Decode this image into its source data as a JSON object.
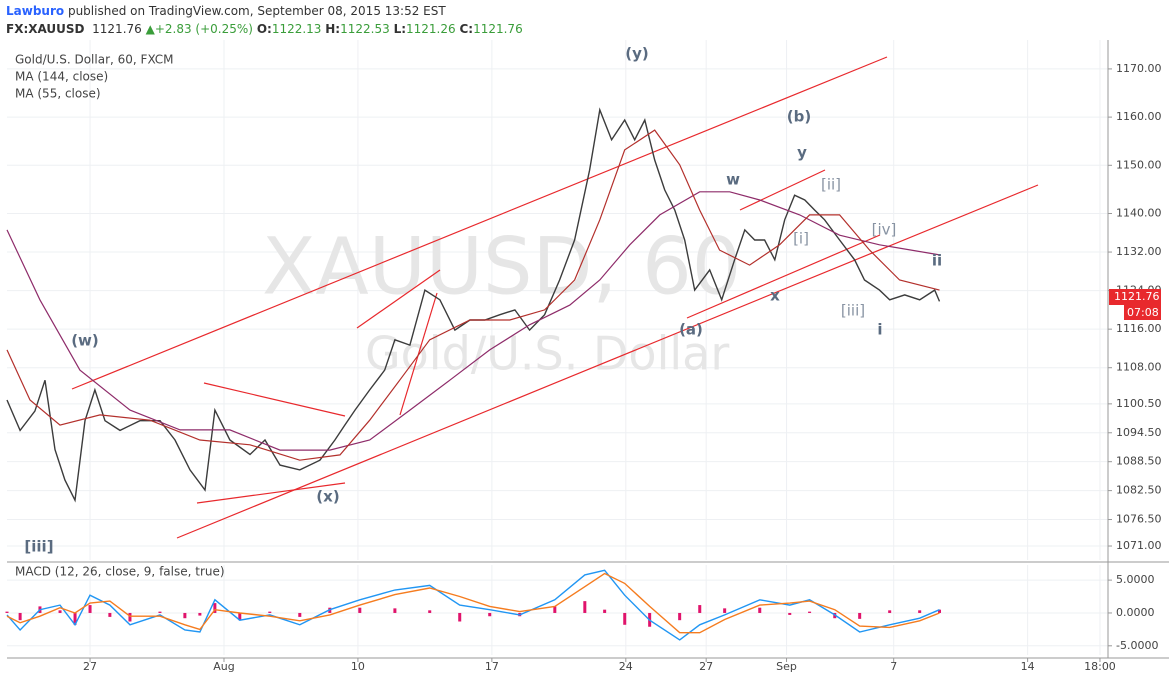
{
  "header": {
    "publisher": "Lawburo",
    "published_text": "published on TradingView.com, September 08, 2015 13:52 EST",
    "symbol": "FX:XAUUSD",
    "last": "1121.76",
    "change": "+2.83 (+0.25%)",
    "open_label": "O:",
    "open": "1122.13",
    "high_label": "H:",
    "high": "1122.53",
    "low_label": "L:",
    "low": "1121.26",
    "close_label": "C:",
    "close": "1121.76"
  },
  "chart_data": [
    {
      "type": "line",
      "title": "Gold/U.S. Dollar, 60, FXCM",
      "watermark": {
        "symbol": "XAUUSD, 60",
        "name": "Gold/U.S. Dollar"
      },
      "last_price": "1121.76",
      "countdown": "07:08",
      "annotations": [
        "(y)",
        "(b)",
        "y",
        "w",
        "[ii]",
        "[iv]",
        "[i]",
        "ii",
        "x",
        "(a)",
        "[iii]",
        "i",
        "(w)",
        "(x)",
        "[iii]"
      ],
      "xlim": [
        0,
        41.1
      ],
      "ylim": [
        1068.1,
        1176.0
      ],
      "yticks": [
        {
          "value": 1071,
          "label": "1071.00"
        },
        {
          "value": 1076.5,
          "label": "1076.50"
        },
        {
          "value": 1082.5,
          "label": "1082.50"
        },
        {
          "value": 1088.5,
          "label": "1088.50"
        },
        {
          "value": 1094.5,
          "label": "1094.50"
        },
        {
          "value": 1100.5,
          "label": "1100.50"
        },
        {
          "value": 1108,
          "label": "1108.00"
        },
        {
          "value": 1116,
          "label": "1116.00"
        },
        {
          "value": 1124,
          "label": "1124.00"
        },
        {
          "value": 1132,
          "label": "1132.00"
        },
        {
          "value": 1140,
          "label": "1140.00"
        },
        {
          "value": 1150,
          "label": "1150.00"
        },
        {
          "value": 1160,
          "label": "1160.00"
        },
        {
          "value": 1170,
          "label": "1170.00"
        }
      ],
      "grid": true,
      "series": [
        {
          "color": "#3c3c3c",
          "x": [
            0,
            0.49,
            1.04,
            1.42,
            1.79,
            2.16,
            2.54,
            2.91,
            3.28,
            3.66,
            4.22,
            4.96,
            5.71,
            6.27,
            6.83,
            7.39,
            7.76,
            8.32,
            9.07,
            9.63,
            10.19,
            10.93,
            11.68,
            12.24,
            12.61,
            12.99,
            13.54,
            14.1,
            14.48,
            15.04,
            15.6,
            16.16,
            16.72,
            17.28,
            17.84,
            18.4,
            18.96,
            19.51,
            20.07,
            20.63,
            21.19,
            21.75,
            22.13,
            22.57,
            23.06,
            23.43,
            23.81,
            24.18,
            24.55,
            24.93,
            25.3,
            25.67,
            26.23,
            26.68,
            27.16,
            27.54,
            27.91,
            28.28,
            28.66,
            29.03,
            29.4,
            29.78,
            30.15,
            30.52,
            31.08,
            31.64,
            32.01,
            32.57,
            32.95,
            33.51,
            34.07,
            34.63,
            34.81
          ],
          "values": [
            1101.3,
            1095,
            1099,
            1105.4,
            1091,
            1084.7,
            1080.5,
            1097,
            1103.4,
            1097,
            1095,
            1097,
            1097,
            1093,
            1086.8,
            1082.6,
            1099.2,
            1093,
            1090,
            1093,
            1087.8,
            1086.8,
            1088.8,
            1093,
            1096.1,
            1099.2,
            1103.4,
            1107.5,
            1113.8,
            1112.7,
            1124.1,
            1122.1,
            1115.8,
            1117.9,
            1117.9,
            1119,
            1120,
            1115.8,
            1119,
            1126.2,
            1134.5,
            1149,
            1161.5,
            1155.3,
            1159.4,
            1155.3,
            1159.4,
            1151.1,
            1144.9,
            1140.7,
            1134.5,
            1124.1,
            1128.3,
            1122.1,
            1130.4,
            1136.6,
            1134.5,
            1134.5,
            1130.4,
            1138.7,
            1143.8,
            1142.8,
            1140.7,
            1138.7,
            1134.5,
            1130.4,
            1126.2,
            1124.1,
            1122.1,
            1123.1,
            1122.1,
            1124.1,
            1121.76
          ]
        },
        {
          "name": "MA (144, close)",
          "color": "#8e2c6a",
          "x": [
            0,
            1.23,
            2.72,
            4.59,
            6.46,
            8.32,
            10.19,
            12.05,
            13.54,
            15.04,
            16.53,
            18.02,
            19.51,
            21.01,
            22.13,
            23.25,
            24.37,
            25.86,
            26.98,
            28.1,
            29.59,
            31.08,
            32.57,
            34.81
          ],
          "values": [
            1136.6,
            1122.1,
            1107.5,
            1099.2,
            1095.1,
            1095.1,
            1090.9,
            1090.9,
            1093.0,
            1099.2,
            1105.4,
            1111.7,
            1116.9,
            1121.0,
            1126.2,
            1133.5,
            1139.7,
            1144.5,
            1144.5,
            1142.8,
            1139.7,
            1135.5,
            1133.5,
            1131.4
          ]
        },
        {
          "name": "MA (55, close)",
          "color": "#b3302c",
          "x": [
            0,
            0.86,
            1.98,
            3.47,
            5.34,
            7.2,
            9.07,
            10.93,
            12.43,
            13.54,
            14.66,
            15.78,
            17.28,
            18.77,
            20.07,
            21.19,
            22.13,
            23.06,
            24.18,
            25.11,
            25.86,
            26.6,
            27.72,
            28.84,
            29.96,
            31.08,
            32.2,
            33.32,
            34.81
          ],
          "values": [
            1111.7,
            1101.3,
            1096.1,
            1098.2,
            1097.1,
            1093.0,
            1092.0,
            1088.8,
            1089.9,
            1097.1,
            1105.4,
            1113.8,
            1117.9,
            1117.9,
            1120.0,
            1126.2,
            1138.7,
            1153.2,
            1157.3,
            1150.1,
            1140.7,
            1132.4,
            1129.3,
            1133.5,
            1139.7,
            1139.7,
            1132.4,
            1126.2,
            1124.1
          ]
        }
      ]
    },
    {
      "type": "line",
      "title": "MACD (12, 26, close, 9, false, true)",
      "xlim": [
        0,
        41.1
      ],
      "ylim": [
        -6.4,
        7.3
      ],
      "xticks": [
        {
          "value": 3.1,
          "label": "27"
        },
        {
          "value": 8.1,
          "label": "Aug"
        },
        {
          "value": 13.1,
          "label": "10"
        },
        {
          "value": 18.1,
          "label": "17"
        },
        {
          "value": 23.1,
          "label": "24"
        },
        {
          "value": 26.1,
          "label": "27"
        },
        {
          "value": 29.1,
          "label": "Sep"
        },
        {
          "value": 33.1,
          "label": "7"
        },
        {
          "value": 38.1,
          "label": "14"
        },
        {
          "value": 40.8,
          "label": "18:00"
        }
      ],
      "yticks": [
        {
          "value": -5,
          "label": "-5.0000"
        },
        {
          "value": 0,
          "label": "0.0000"
        },
        {
          "value": 5,
          "label": "5.0000"
        }
      ],
      "grid": true,
      "series": [
        {
          "type": "bar",
          "color": "#e0136b",
          "x": [
            0,
            0.49,
            1.23,
            1.98,
            2.54,
            3.1,
            3.84,
            4.59,
            5.71,
            6.64,
            7.2,
            7.76,
            8.69,
            9.81,
            10.93,
            12.05,
            13.17,
            14.48,
            15.78,
            16.9,
            18.02,
            19.14,
            20.45,
            21.57,
            22.31,
            23.06,
            23.99,
            25.11,
            25.86,
            26.79,
            28.1,
            29.22,
            29.96,
            30.9,
            31.83,
            32.95,
            34.07,
            34.81
          ],
          "values": [
            0.2,
            -1.1,
            1.0,
            0.4,
            -1.8,
            1.2,
            -0.6,
            -1.3,
            0.2,
            -0.8,
            -0.4,
            1.5,
            -1.1,
            0.2,
            -0.6,
            0.8,
            0.8,
            0.7,
            0.4,
            -1.3,
            -0.5,
            -0.5,
            1.0,
            1.8,
            0.5,
            -1.8,
            -2.1,
            -1.1,
            1.2,
            0.7,
            0.8,
            -0.3,
            0.2,
            -0.8,
            -0.9,
            0.4,
            0.4,
            0.5
          ]
        },
        {
          "type": "line",
          "color": "#2196f3",
          "x": [
            0,
            0.49,
            1.23,
            1.98,
            2.54,
            3.1,
            3.84,
            4.59,
            5.71,
            6.64,
            7.2,
            7.76,
            8.69,
            9.81,
            10.93,
            12.05,
            13.17,
            14.48,
            15.78,
            16.9,
            18.02,
            19.14,
            20.45,
            21.57,
            22.31,
            23.06,
            23.99,
            25.11,
            25.86,
            26.79,
            28.1,
            29.22,
            29.96,
            30.9,
            31.83,
            32.95,
            34.07,
            34.81
          ],
          "values": [
            -0.3,
            -2.6,
            0.5,
            1.2,
            -1.8,
            2.7,
            1.2,
            -1.8,
            -0.3,
            -2.6,
            -2.9,
            2.0,
            -1.1,
            -0.3,
            -1.8,
            0.5,
            2.0,
            3.5,
            4.2,
            1.2,
            0.5,
            -0.3,
            2.0,
            5.8,
            6.5,
            2.7,
            -1.1,
            -4.1,
            -1.8,
            -0.3,
            2.0,
            1.2,
            2.0,
            -0.3,
            -2.9,
            -1.8,
            -0.8,
            0.5
          ]
        },
        {
          "type": "line",
          "color": "#f57c1f",
          "x": [
            0,
            0.49,
            1.23,
            1.98,
            2.54,
            3.1,
            3.84,
            4.59,
            5.71,
            6.64,
            7.2,
            7.76,
            8.69,
            9.81,
            10.93,
            12.05,
            13.17,
            14.48,
            15.78,
            16.9,
            18.02,
            19.14,
            20.45,
            21.57,
            22.31,
            23.06,
            23.99,
            25.11,
            25.86,
            26.79,
            28.1,
            29.22,
            29.96,
            30.9,
            31.83,
            32.95,
            34.07,
            34.81
          ],
          "values": [
            -0.5,
            -1.5,
            -0.5,
            0.8,
            0.0,
            1.5,
            1.8,
            -0.5,
            -0.5,
            -1.8,
            -2.5,
            0.5,
            0.0,
            -0.5,
            -1.2,
            -0.3,
            1.2,
            2.8,
            3.8,
            2.5,
            1.0,
            0.2,
            1.0,
            4.0,
            6.0,
            4.5,
            1.0,
            -3.0,
            -3.0,
            -1.0,
            1.2,
            1.5,
            1.8,
            0.5,
            -2.0,
            -2.2,
            -1.2,
            0.0
          ]
        }
      ]
    }
  ]
}
